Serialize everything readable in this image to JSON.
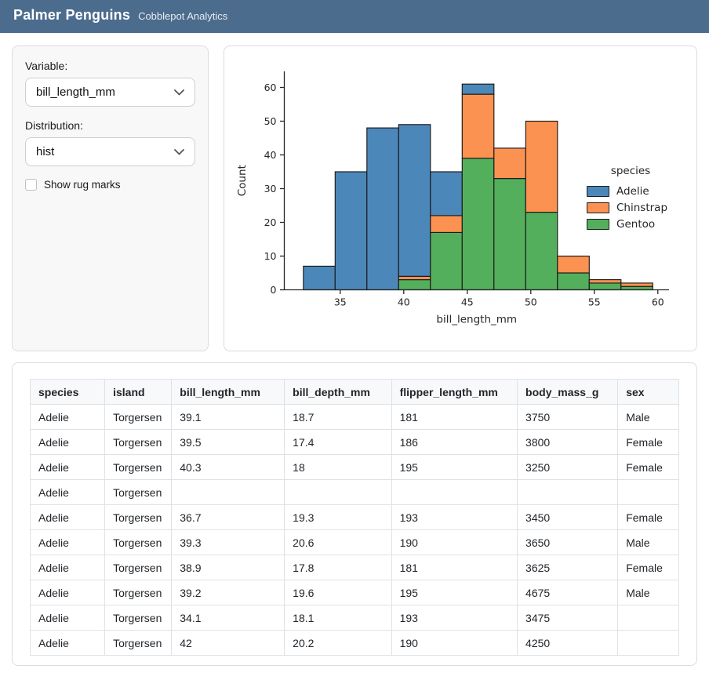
{
  "header": {
    "title": "Palmer Penguins",
    "subtitle": "Cobblepot Analytics"
  },
  "sidebar": {
    "variable_label": "Variable:",
    "variable_value": "bill_length_mm",
    "distribution_label": "Distribution:",
    "distribution_value": "hist",
    "rug_checkbox_label": "Show rug marks",
    "rug_checked": false
  },
  "chart_data": {
    "type": "bar",
    "subtype": "stacked-histogram",
    "title": "",
    "xlabel": "bill_length_mm",
    "ylabel": "Count",
    "bin_edges": [
      32.1,
      34.6,
      37.1,
      39.6,
      42.1,
      44.6,
      47.1,
      49.6,
      52.1,
      54.6,
      57.1,
      59.6
    ],
    "x_ticks": [
      35,
      40,
      45,
      50,
      55,
      60
    ],
    "y_ticks": [
      0,
      10,
      20,
      30,
      40,
      50,
      60
    ],
    "xlim": [
      30.6,
      60.9
    ],
    "ylim": [
      0,
      64
    ],
    "grid": false,
    "legend_title": "species",
    "legend_position": "center right",
    "stack_order": [
      "Gentoo",
      "Chinstrap",
      "Adelie"
    ],
    "series": [
      {
        "name": "Adelie",
        "color": "#4C87B9",
        "values": [
          7,
          35,
          48,
          45,
          13,
          3,
          0,
          0,
          0,
          0,
          0
        ]
      },
      {
        "name": "Chinstrap",
        "color": "#FC9251",
        "values": [
          0,
          0,
          0,
          1,
          5,
          19,
          9,
          27,
          5,
          1,
          1
        ]
      },
      {
        "name": "Gentoo",
        "color": "#54AF5C",
        "values": [
          0,
          0,
          0,
          3,
          17,
          39,
          33,
          23,
          5,
          2,
          1
        ]
      }
    ],
    "stack_totals": [
      7,
      35,
      48,
      49,
      35,
      61,
      42,
      50,
      10,
      3,
      2
    ]
  },
  "table": {
    "columns": [
      "species",
      "island",
      "bill_length_mm",
      "bill_depth_mm",
      "flipper_length_mm",
      "body_mass_g",
      "sex"
    ],
    "col_widths_pct": [
      11.5,
      10.3,
      17.4,
      16.5,
      19.4,
      15.5,
      9.4
    ],
    "rows": [
      [
        "Adelie",
        "Torgersen",
        "39.1",
        "18.7",
        "181",
        "3750",
        "Male"
      ],
      [
        "Adelie",
        "Torgersen",
        "39.5",
        "17.4",
        "186",
        "3800",
        "Female"
      ],
      [
        "Adelie",
        "Torgersen",
        "40.3",
        "18",
        "195",
        "3250",
        "Female"
      ],
      [
        "Adelie",
        "Torgersen",
        "",
        "",
        "",
        "",
        ""
      ],
      [
        "Adelie",
        "Torgersen",
        "36.7",
        "19.3",
        "193",
        "3450",
        "Female"
      ],
      [
        "Adelie",
        "Torgersen",
        "39.3",
        "20.6",
        "190",
        "3650",
        "Male"
      ],
      [
        "Adelie",
        "Torgersen",
        "38.9",
        "17.8",
        "181",
        "3625",
        "Female"
      ],
      [
        "Adelie",
        "Torgersen",
        "39.2",
        "19.6",
        "195",
        "4675",
        "Male"
      ],
      [
        "Adelie",
        "Torgersen",
        "34.1",
        "18.1",
        "193",
        "3475",
        ""
      ],
      [
        "Adelie",
        "Torgersen",
        "42",
        "20.2",
        "190",
        "4250",
        ""
      ]
    ]
  },
  "colors": {
    "navbar_bg": "#4C6C8E",
    "bar_edge": "#1a1a1a",
    "axis": "#262626",
    "table_border": "#dee2e6",
    "table_header_bg": "#f8f9fa",
    "sidebar_bg": "#f8f8f8"
  }
}
